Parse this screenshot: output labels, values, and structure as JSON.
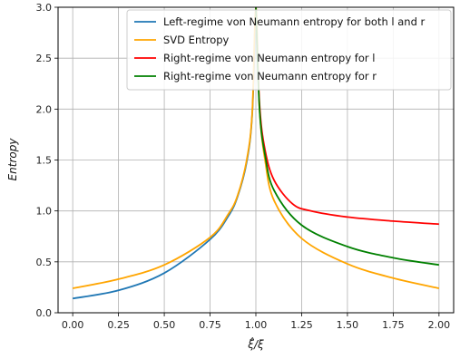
{
  "chart_data": {
    "type": "line",
    "xlabel": "ξ̂/ξ",
    "ylabel": "Entropy",
    "xlim": [
      -0.08,
      2.08
    ],
    "ylim": [
      0.0,
      3.0
    ],
    "xticks": [
      "0.00",
      "0.25",
      "0.50",
      "0.75",
      "1.00",
      "1.25",
      "1.50",
      "1.75",
      "2.00"
    ],
    "yticks": [
      "0.0",
      "0.5",
      "1.0",
      "1.5",
      "2.0",
      "2.5",
      "3.0"
    ],
    "grid": true,
    "legend_position": "top-right",
    "series": [
      {
        "name": "Left-regime von Neumann entropy for both l and r",
        "color": "#1f77b4",
        "x": [
          0.0,
          0.25,
          0.5,
          0.75,
          0.85,
          0.9,
          0.95,
          0.98,
          1.0
        ],
        "y": [
          0.14,
          0.22,
          0.39,
          0.72,
          0.95,
          1.14,
          1.48,
          1.95,
          3.0
        ]
      },
      {
        "name": "SVD Entropy",
        "color": "#ffa500",
        "x": [
          0.0,
          0.25,
          0.5,
          0.75,
          0.85,
          0.9,
          0.95,
          0.98,
          1.0,
          1.02,
          1.05,
          1.1,
          1.25,
          1.5,
          1.75,
          2.0
        ],
        "y": [
          0.24,
          0.33,
          0.47,
          0.74,
          0.97,
          1.15,
          1.5,
          1.96,
          3.0,
          2.0,
          1.5,
          1.1,
          0.73,
          0.48,
          0.34,
          0.24
        ]
      },
      {
        "name": "Right-regime von Neumann entropy for l",
        "color": "#ff0000",
        "x": [
          1.0,
          1.02,
          1.05,
          1.1,
          1.2,
          1.3,
          1.5,
          1.75,
          2.0
        ],
        "y": [
          3.0,
          2.05,
          1.6,
          1.3,
          1.07,
          1.0,
          0.94,
          0.9,
          0.87
        ]
      },
      {
        "name": "Right-regime von Neumann entropy for r",
        "color": "#008000",
        "x": [
          1.0,
          1.02,
          1.05,
          1.1,
          1.25,
          1.5,
          1.75,
          2.0
        ],
        "y": [
          3.0,
          2.0,
          1.55,
          1.2,
          0.86,
          0.65,
          0.54,
          0.47
        ]
      }
    ]
  }
}
